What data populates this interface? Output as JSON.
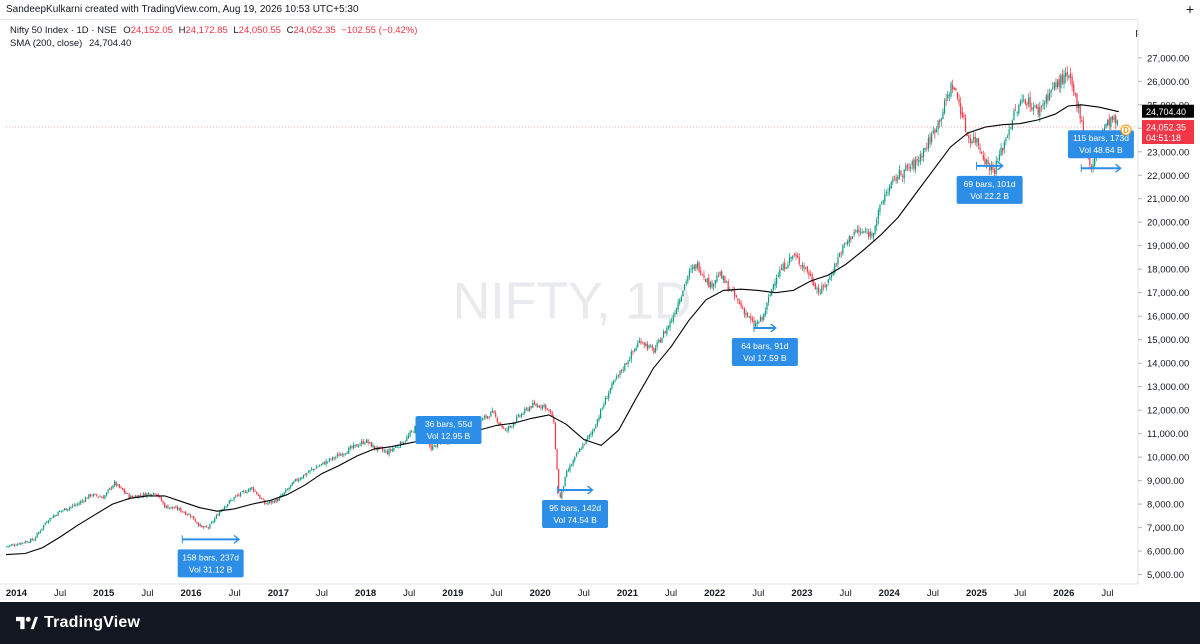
{
  "header": {
    "author": "SandeepKulkarni created with TradingView.com, Aug 19, 2026 10:53 UTC+5:30",
    "plus_icon": "plus-icon"
  },
  "legend": {
    "symbol": "Nifty 50 Index · 1D · NSE",
    "o_label": "O",
    "o_val": "24,152.05",
    "h_label": "H",
    "h_val": "24,172.85",
    "l_label": "L",
    "l_val": "24,050.55",
    "c_label": "C",
    "c_val": "24,052.35",
    "change": "−102.55 (−0.42%)",
    "sma_label": "SMA (200, close)",
    "sma_val": "24,704.40"
  },
  "axis_unit": "point",
  "watermark": "NIFTY, 1D",
  "price_tags": {
    "sma": "24,704.40",
    "last": "24,052.35",
    "countdown": "04:51:18",
    "dividend_marker": "D"
  },
  "footer": {
    "brand": "TradingView",
    "logo_icon": "tradingview-logo-icon"
  },
  "colors": {
    "up": "#089981",
    "down": "#f23645",
    "sma": "#000000",
    "annotation": "#2d8ee8",
    "last_price": "#f23645"
  },
  "chart_data": {
    "type": "candlestick",
    "y_ticks": [
      "27,000.00",
      "26,000.00",
      "25,000.00",
      "24,000.00",
      "23,000.00",
      "22,000.00",
      "21,000.00",
      "20,000.00",
      "19,000.00",
      "18,000.00",
      "17,000.00",
      "16,000.00",
      "15,000.00",
      "14,000.00",
      "13,000.00",
      "12,000.00",
      "11,000.00",
      "10,000.00",
      "9,000.00",
      "8,000.00",
      "7,000.00",
      "6,000.00",
      "5,000.00"
    ],
    "ylim": [
      4600,
      27800
    ],
    "x_ticks": [
      {
        "label": "2014",
        "t": 2014.0
      },
      {
        "label": "Jul",
        "t": 2014.5
      },
      {
        "label": "2015",
        "t": 2015.0
      },
      {
        "label": "Jul",
        "t": 2015.5
      },
      {
        "label": "2016",
        "t": 2016.0
      },
      {
        "label": "Jul",
        "t": 2016.5
      },
      {
        "label": "2017",
        "t": 2017.0
      },
      {
        "label": "Jul",
        "t": 2017.5
      },
      {
        "label": "2018",
        "t": 2018.0
      },
      {
        "label": "Jul",
        "t": 2018.5
      },
      {
        "label": "2019",
        "t": 2019.0
      },
      {
        "label": "Jul",
        "t": 2019.5
      },
      {
        "label": "2020",
        "t": 2020.0
      },
      {
        "label": "Jul",
        "t": 2020.5
      },
      {
        "label": "2021",
        "t": 2021.0
      },
      {
        "label": "Jul",
        "t": 2021.5
      },
      {
        "label": "2022",
        "t": 2022.0
      },
      {
        "label": "Jul",
        "t": 2022.5
      },
      {
        "label": "2023",
        "t": 2023.0
      },
      {
        "label": "Jul",
        "t": 2023.5
      },
      {
        "label": "2024",
        "t": 2024.0
      },
      {
        "label": "Jul",
        "t": 2024.5
      },
      {
        "label": "2025",
        "t": 2025.0
      },
      {
        "label": "Jul",
        "t": 2025.5
      },
      {
        "label": "2026",
        "t": 2026.0
      },
      {
        "label": "Jul",
        "t": 2026.5
      }
    ],
    "xlim": [
      2013.88,
      2026.85
    ],
    "price_path": [
      [
        2013.88,
        6200
      ],
      [
        2014.0,
        6300
      ],
      [
        2014.2,
        6500
      ],
      [
        2014.35,
        7300
      ],
      [
        2014.5,
        7700
      ],
      [
        2014.7,
        8000
      ],
      [
        2014.85,
        8400
      ],
      [
        2015.0,
        8300
      ],
      [
        2015.12,
        8900
      ],
      [
        2015.3,
        8300
      ],
      [
        2015.45,
        8400
      ],
      [
        2015.6,
        8500
      ],
      [
        2015.7,
        7900
      ],
      [
        2015.85,
        7800
      ],
      [
        2016.0,
        7500
      ],
      [
        2016.12,
        7000
      ],
      [
        2016.2,
        7000
      ],
      [
        2016.35,
        7800
      ],
      [
        2016.5,
        8300
      ],
      [
        2016.7,
        8700
      ],
      [
        2016.85,
        8000
      ],
      [
        2017.0,
        8200
      ],
      [
        2017.2,
        9000
      ],
      [
        2017.4,
        9500
      ],
      [
        2017.6,
        9900
      ],
      [
        2017.8,
        10300
      ],
      [
        2018.0,
        10700
      ],
      [
        2018.1,
        10400
      ],
      [
        2018.25,
        10200
      ],
      [
        2018.45,
        10700
      ],
      [
        2018.6,
        11400
      ],
      [
        2018.75,
        10400
      ],
      [
        2018.85,
        10600
      ],
      [
        2019.0,
        10800
      ],
      [
        2019.15,
        11000
      ],
      [
        2019.3,
        11500
      ],
      [
        2019.45,
        11900
      ],
      [
        2019.6,
        11100
      ],
      [
        2019.75,
        11700
      ],
      [
        2019.9,
        12200
      ],
      [
        2020.05,
        12200
      ],
      [
        2020.15,
        11700
      ],
      [
        2020.22,
        8100
      ],
      [
        2020.3,
        9300
      ],
      [
        2020.45,
        10300
      ],
      [
        2020.6,
        11100
      ],
      [
        2020.8,
        12900
      ],
      [
        2021.0,
        14100
      ],
      [
        2021.15,
        15000
      ],
      [
        2021.3,
        14500
      ],
      [
        2021.5,
        15800
      ],
      [
        2021.7,
        17800
      ],
      [
        2021.8,
        18200
      ],
      [
        2021.95,
        17300
      ],
      [
        2022.05,
        17800
      ],
      [
        2022.2,
        17000
      ],
      [
        2022.45,
        15600
      ],
      [
        2022.55,
        15900
      ],
      [
        2022.7,
        17700
      ],
      [
        2022.9,
        18600
      ],
      [
        2023.05,
        18000
      ],
      [
        2023.2,
        17000
      ],
      [
        2023.3,
        17500
      ],
      [
        2023.45,
        18800
      ],
      [
        2023.6,
        19600
      ],
      [
        2023.8,
        19500
      ],
      [
        2023.95,
        21200
      ],
      [
        2024.1,
        22000
      ],
      [
        2024.3,
        22500
      ],
      [
        2024.45,
        23400
      ],
      [
        2024.6,
        24600
      ],
      [
        2024.72,
        25900
      ],
      [
        2024.8,
        25100
      ],
      [
        2024.9,
        23600
      ],
      [
        2025.0,
        23500
      ],
      [
        2025.12,
        22500
      ],
      [
        2025.2,
        22200
      ],
      [
        2025.3,
        23200
      ],
      [
        2025.42,
        24500
      ],
      [
        2025.55,
        25300
      ],
      [
        2025.7,
        24700
      ],
      [
        2025.85,
        25600
      ],
      [
        2025.95,
        26000
      ],
      [
        2026.05,
        26200
      ],
      [
        2026.13,
        25300
      ],
      [
        2026.2,
        24500
      ],
      [
        2026.25,
        23200
      ],
      [
        2026.32,
        22200
      ],
      [
        2026.42,
        23800
      ],
      [
        2026.55,
        24400
      ],
      [
        2026.63,
        24052
      ]
    ],
    "sma200_path": [
      [
        2013.88,
        5850
      ],
      [
        2014.1,
        5900
      ],
      [
        2014.3,
        6150
      ],
      [
        2014.5,
        6600
      ],
      [
        2014.7,
        7100
      ],
      [
        2014.9,
        7550
      ],
      [
        2015.1,
        8000
      ],
      [
        2015.3,
        8250
      ],
      [
        2015.5,
        8350
      ],
      [
        2015.7,
        8350
      ],
      [
        2015.9,
        8100
      ],
      [
        2016.1,
        7850
      ],
      [
        2016.3,
        7700
      ],
      [
        2016.5,
        7800
      ],
      [
        2016.7,
        8000
      ],
      [
        2016.9,
        8150
      ],
      [
        2017.1,
        8400
      ],
      [
        2017.3,
        8800
      ],
      [
        2017.5,
        9300
      ],
      [
        2017.7,
        9650
      ],
      [
        2017.9,
        10050
      ],
      [
        2018.1,
        10350
      ],
      [
        2018.3,
        10450
      ],
      [
        2018.5,
        10600
      ],
      [
        2018.7,
        10750
      ],
      [
        2018.9,
        10850
      ],
      [
        2019.1,
        10900
      ],
      [
        2019.3,
        11150
      ],
      [
        2019.5,
        11350
      ],
      [
        2019.7,
        11450
      ],
      [
        2019.9,
        11650
      ],
      [
        2020.1,
        11800
      ],
      [
        2020.3,
        11400
      ],
      [
        2020.5,
        10750
      ],
      [
        2020.7,
        10500
      ],
      [
        2020.9,
        11150
      ],
      [
        2021.1,
        12500
      ],
      [
        2021.3,
        13800
      ],
      [
        2021.5,
        14700
      ],
      [
        2021.7,
        15800
      ],
      [
        2021.9,
        16700
      ],
      [
        2022.1,
        17100
      ],
      [
        2022.3,
        17150
      ],
      [
        2022.5,
        17100
      ],
      [
        2022.7,
        17000
      ],
      [
        2022.9,
        17100
      ],
      [
        2023.1,
        17500
      ],
      [
        2023.3,
        17750
      ],
      [
        2023.5,
        18200
      ],
      [
        2023.7,
        18800
      ],
      [
        2023.9,
        19450
      ],
      [
        2024.1,
        20200
      ],
      [
        2024.3,
        21200
      ],
      [
        2024.5,
        22200
      ],
      [
        2024.7,
        23200
      ],
      [
        2024.9,
        23800
      ],
      [
        2025.1,
        24050
      ],
      [
        2025.3,
        24150
      ],
      [
        2025.5,
        24200
      ],
      [
        2025.7,
        24350
      ],
      [
        2025.9,
        24600
      ],
      [
        2026.05,
        24950
      ],
      [
        2026.2,
        25000
      ],
      [
        2026.4,
        24900
      ],
      [
        2026.63,
        24704
      ]
    ],
    "annotations": [
      {
        "line1": "158 bars, 237d",
        "line2": "Vol 31.12 B",
        "t0": 2015.9,
        "t1": 2016.55,
        "y": 6500
      },
      {
        "line1": "36 bars, 55d",
        "line2": "Vol 12.95 B",
        "t0": 2018.85,
        "t1": 2019.05,
        "y": 10900
      },
      {
        "line1": "95 bars, 142d",
        "line2": "Vol 74.54 B",
        "t0": 2020.2,
        "t1": 2020.6,
        "y": 8600
      },
      {
        "line1": "64 bars, 91d",
        "line2": "Vol 17.59 B",
        "t0": 2022.45,
        "t1": 2022.7,
        "y": 15500
      },
      {
        "line1": "69 bars, 101d",
        "line2": "Vol 22.2 B",
        "t0": 2025.0,
        "t1": 2025.3,
        "y": 22400
      },
      {
        "line1": "115 bars, 173d",
        "line2": "Vol 48.64 B",
        "t0": 2026.2,
        "t1": 2026.65,
        "y": 22300
      }
    ]
  }
}
